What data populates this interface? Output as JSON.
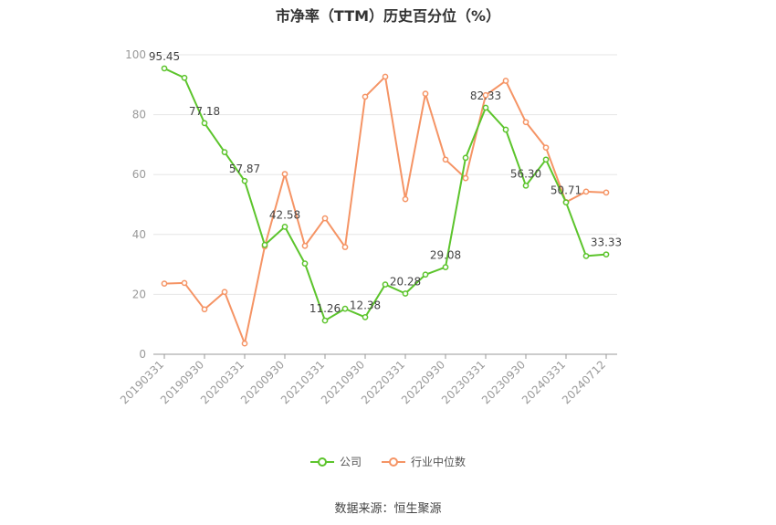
{
  "chart_data": {
    "type": "line",
    "title": "市净率（TTM）历史百分位（%）",
    "ylim": [
      0,
      100
    ],
    "yticks": [
      0,
      20,
      40,
      60,
      80,
      100
    ],
    "grid": true,
    "legend_position": "bottom",
    "x": [
      "20190331",
      "20190630",
      "20190930",
      "20191231",
      "20200331",
      "20200630",
      "20200930",
      "20201231",
      "20210331",
      "20210630",
      "20210930",
      "20211231",
      "20220331",
      "20220630",
      "20220930",
      "20221231",
      "20230331",
      "20230630",
      "20230930",
      "20231231",
      "20240331",
      "20240630",
      "20240712"
    ],
    "xticks": [
      "20190331",
      "20190930",
      "20200331",
      "20200930",
      "20210331",
      "20210930",
      "20220331",
      "20220930",
      "20230331",
      "20230930",
      "20240331",
      "20240712"
    ],
    "series": [
      {
        "name": "公司",
        "color": "#5cc42c",
        "values": [
          95.45,
          92.3,
          77.18,
          67.5,
          57.87,
          36.5,
          42.58,
          30.3,
          11.26,
          15.2,
          12.38,
          23.3,
          20.28,
          26.6,
          29.08,
          65.6,
          82.33,
          75.0,
          56.3,
          65.0,
          50.71,
          32.8,
          33.33
        ],
        "labels": {
          "0": "95.45",
          "2": "77.18",
          "4": "57.87",
          "6": "42.58",
          "8": "11.26",
          "10": "12.38",
          "12": "20.28",
          "14": "29.08",
          "16": "82.33",
          "18": "56.30",
          "20": "50.71",
          "22": "33.33"
        }
      },
      {
        "name": "行业中位数",
        "color": "#f59465",
        "values": [
          23.6,
          23.8,
          15.0,
          20.8,
          3.6,
          36.0,
          60.2,
          36.2,
          45.4,
          35.8,
          86.0,
          92.7,
          51.8,
          87.0,
          65.0,
          58.8,
          86.5,
          91.3,
          77.5,
          69.0,
          50.8,
          54.3,
          54.0
        ]
      }
    ]
  },
  "source": "数据来源：恒生聚源"
}
